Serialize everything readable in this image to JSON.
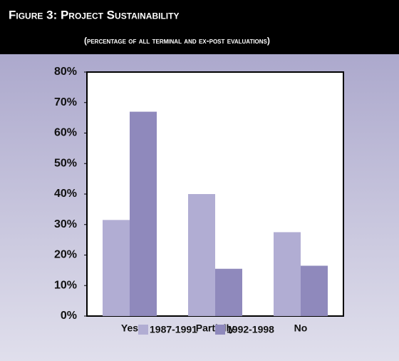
{
  "chart_data": {
    "type": "bar",
    "title": "Figure 3: Project Sustainability",
    "subtitle": "(percentage of all terminal and ex-post evaluations)",
    "categories": [
      "Yes",
      "Partially",
      "No"
    ],
    "series": [
      {
        "name": "1987-1991",
        "color": "#b1add3",
        "values": [
          31.5,
          40,
          27.5
        ]
      },
      {
        "name": "1992-1998",
        "color": "#8f89bc",
        "values": [
          67,
          15.5,
          16.5
        ]
      }
    ],
    "ylim": [
      0,
      80
    ],
    "yticks": [
      {
        "value": 0,
        "label": "0%"
      },
      {
        "value": 10,
        "label": "10%"
      },
      {
        "value": 20,
        "label": "20%"
      },
      {
        "value": 30,
        "label": "30%"
      },
      {
        "value": 40,
        "label": "40%"
      },
      {
        "value": 50,
        "label": "50%"
      },
      {
        "value": 60,
        "label": "60%"
      },
      {
        "value": 70,
        "label": "70%"
      },
      {
        "value": 80,
        "label": "80%"
      }
    ],
    "grid": false,
    "legend": "bottom"
  }
}
